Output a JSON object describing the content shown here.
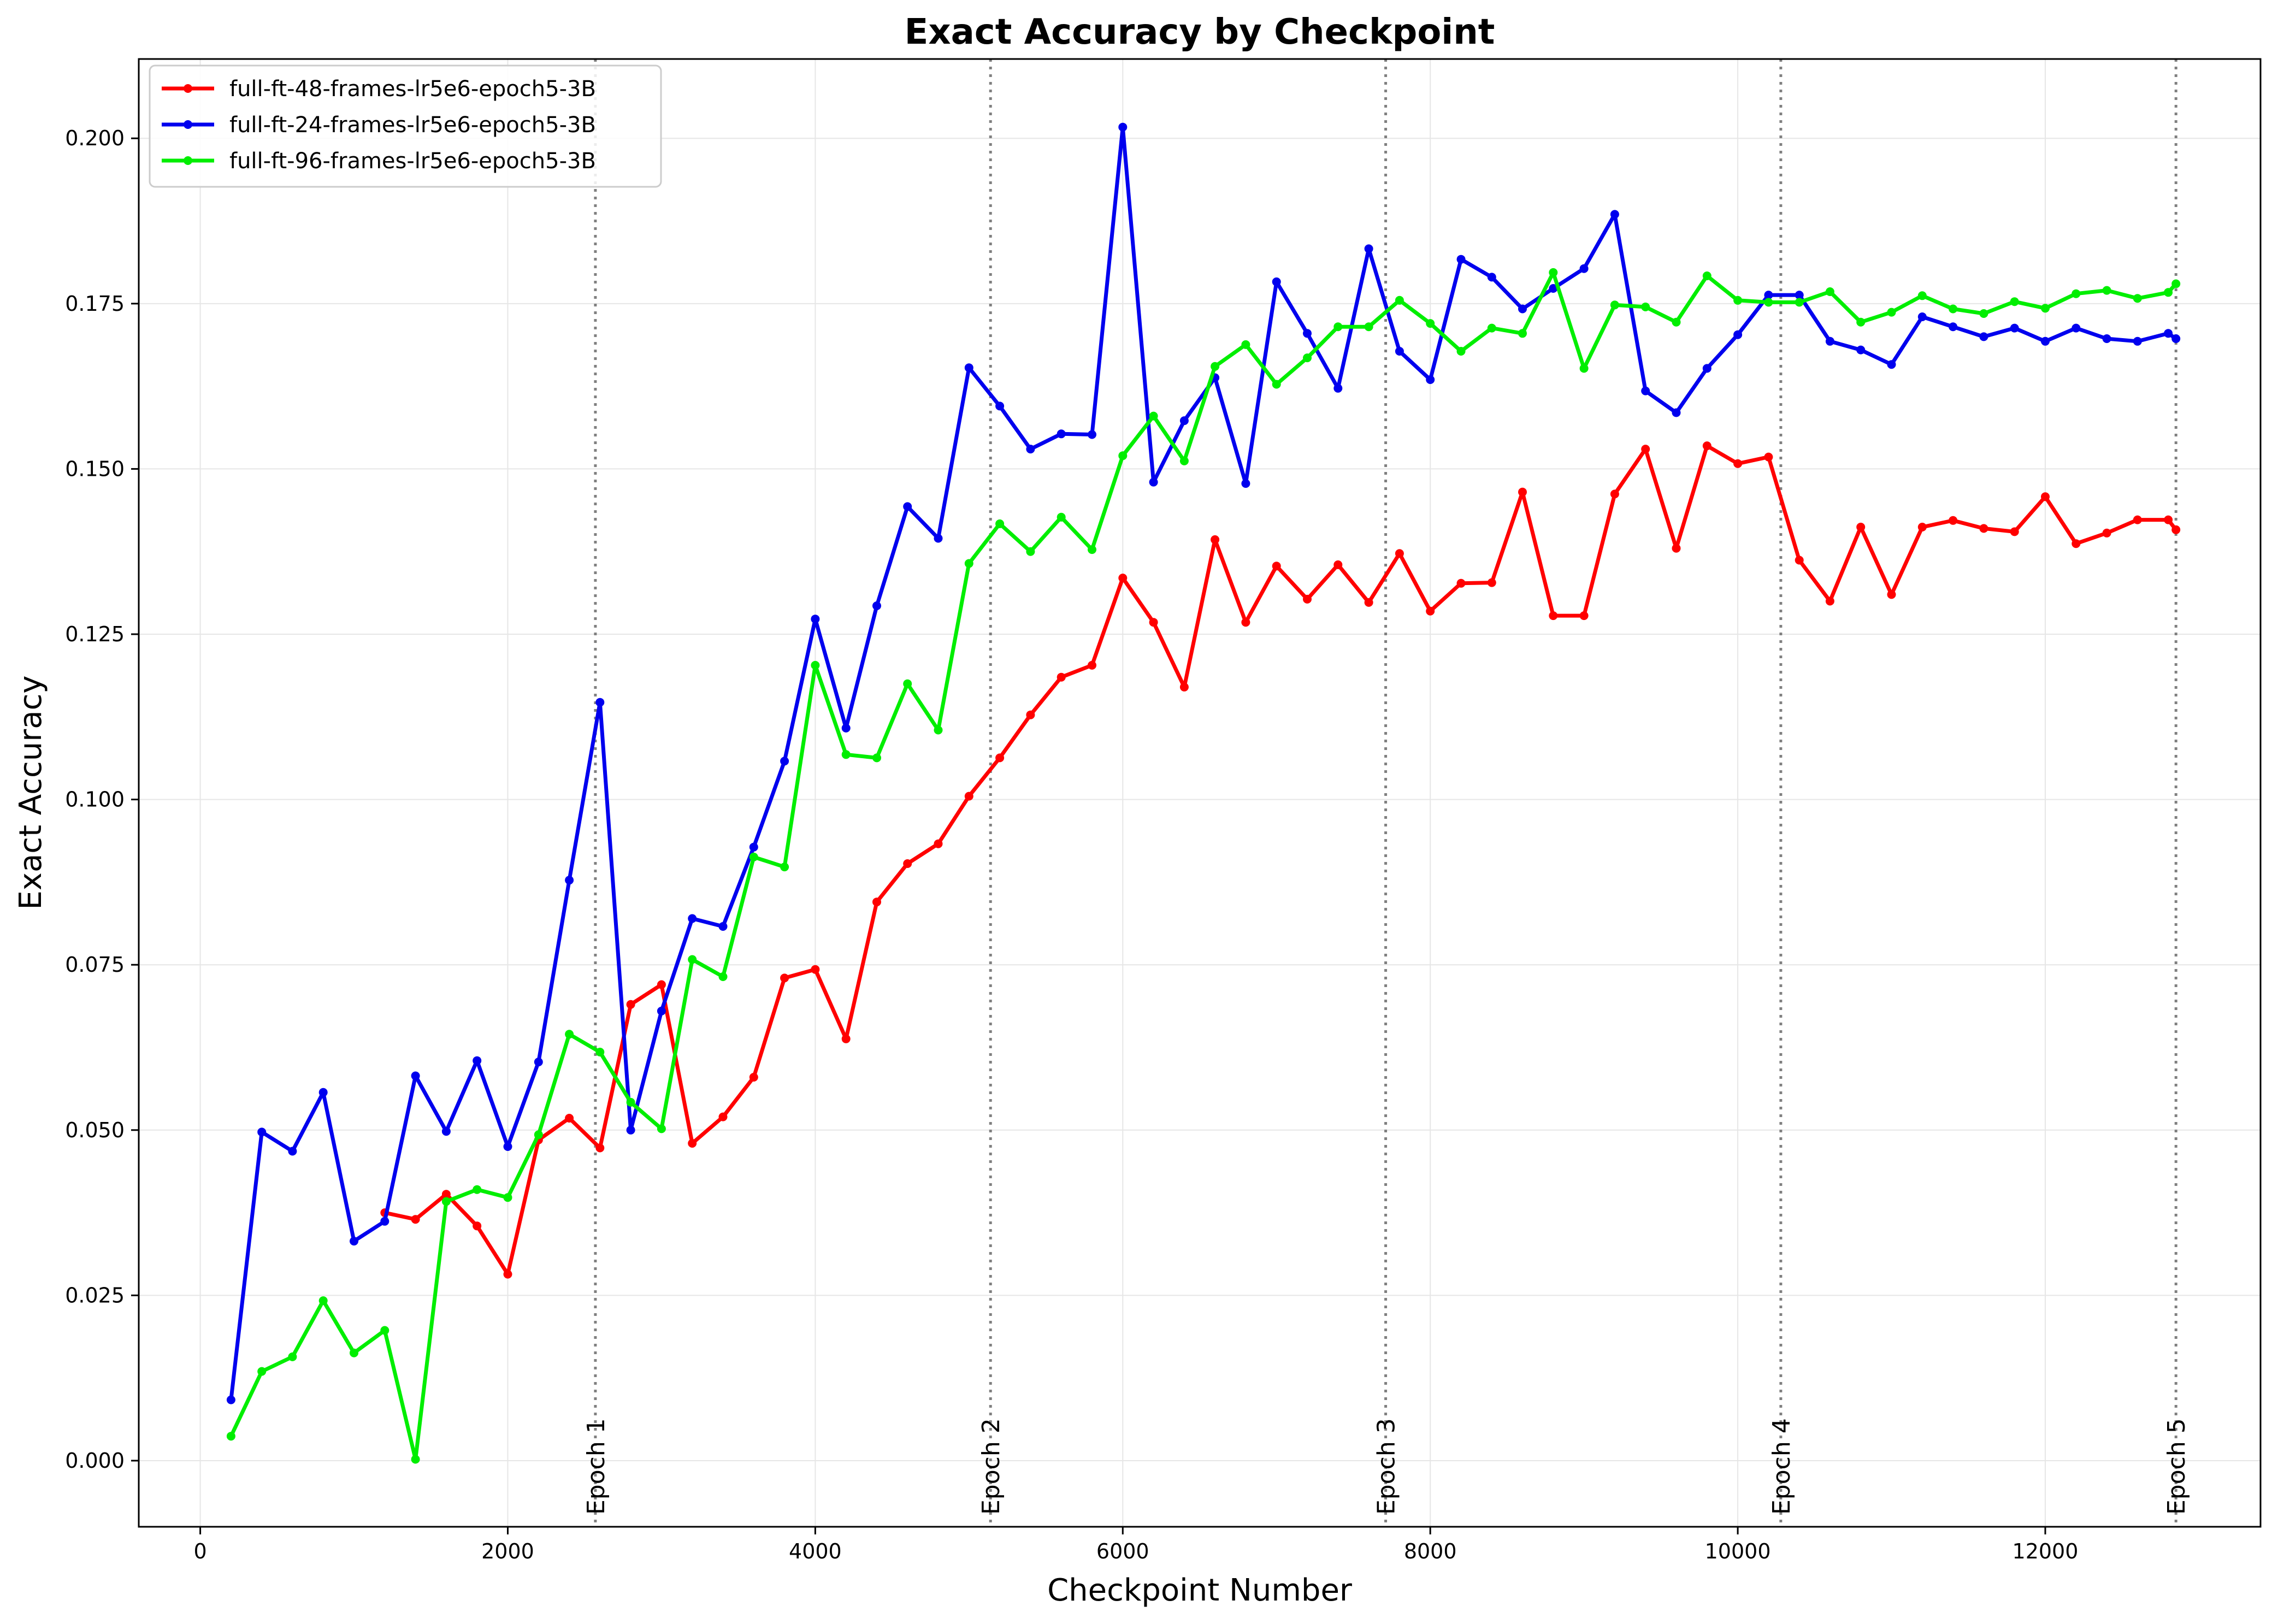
{
  "chart_data": {
    "type": "line",
    "title": "Exact Accuracy by Checkpoint",
    "xlabel": "Checkpoint Number",
    "ylabel": "Exact Accuracy",
    "xlim": [
      -400,
      13400
    ],
    "ylim": [
      -0.01,
      0.212
    ],
    "xticks": [
      0,
      2000,
      4000,
      6000,
      8000,
      10000,
      12000
    ],
    "yticks": [
      0.0,
      0.025,
      0.05,
      0.075,
      0.1,
      0.125,
      0.15,
      0.175,
      0.2
    ],
    "ytick_labels": [
      "0.000",
      "0.025",
      "0.050",
      "0.075",
      "0.100",
      "0.125",
      "0.150",
      "0.175",
      "0.200"
    ],
    "grid": true,
    "legend_position": "top-left",
    "epoch_markers": [
      {
        "label": "Epoch 1",
        "x": 2570
      },
      {
        "label": "Epoch 2",
        "x": 5140
      },
      {
        "label": "Epoch 3",
        "x": 7710
      },
      {
        "label": "Epoch 4",
        "x": 10280
      },
      {
        "label": "Epoch 5",
        "x": 12850
      }
    ],
    "series": [
      {
        "name": "full-ft-48-frames-lr5e6-epoch5-3B",
        "color": "#ff0000",
        "x": [
          1200,
          1400,
          1600,
          1800,
          2000,
          2200,
          2400,
          2600,
          2800,
          3000,
          3200,
          3400,
          3600,
          3800,
          4000,
          4200,
          4400,
          4600,
          4800,
          5000,
          5200,
          5400,
          5600,
          5800,
          6000,
          6200,
          6400,
          6600,
          6800,
          7000,
          7200,
          7400,
          7600,
          7800,
          8000,
          8200,
          8400,
          8600,
          8800,
          9000,
          9200,
          9400,
          9600,
          9800,
          10000,
          10200,
          10400,
          10600,
          10800,
          11000,
          11200,
          11400,
          11600,
          11800,
          12000,
          12200,
          12400,
          12600,
          12800,
          12850
        ],
        "y": [
          0.0375,
          0.0365,
          0.0403,
          0.0355,
          0.0282,
          0.0485,
          0.0518,
          0.0473,
          0.069,
          0.072,
          0.048,
          0.052,
          0.058,
          0.073,
          0.0743,
          0.0638,
          0.0845,
          0.0903,
          0.0933,
          0.1005,
          0.1063,
          0.1128,
          0.1185,
          0.1203,
          0.1335,
          0.1268,
          0.117,
          0.1393,
          0.1268,
          0.1353,
          0.1303,
          0.1355,
          0.1298,
          0.1372,
          0.1285,
          0.1327,
          0.1328,
          0.1465,
          0.1278,
          0.1278,
          0.1462,
          0.153,
          0.138,
          0.1535,
          0.1508,
          0.1518,
          0.1362,
          0.13,
          0.1412,
          0.131,
          0.1412,
          0.1422,
          0.141,
          0.1405,
          0.1458,
          0.1387,
          0.1403,
          0.1423,
          0.1423,
          0.1408
        ]
      },
      {
        "name": "full-ft-24-frames-lr5e6-epoch5-3B",
        "color": "#0000ee",
        "x": [
          200,
          400,
          600,
          800,
          1000,
          1200,
          1400,
          1600,
          1800,
          2000,
          2200,
          2400,
          2600,
          2800,
          3000,
          3200,
          3400,
          3600,
          3800,
          4000,
          4200,
          4400,
          4600,
          4800,
          5000,
          5200,
          5400,
          5600,
          5800,
          6000,
          6200,
          6400,
          6600,
          6800,
          7000,
          7200,
          7400,
          7600,
          7800,
          8000,
          8200,
          8400,
          8600,
          8800,
          9000,
          9200,
          9400,
          9600,
          9800,
          10000,
          10200,
          10400,
          10600,
          10800,
          11000,
          11200,
          11400,
          11600,
          11800,
          12000,
          12200,
          12400,
          12600,
          12800,
          12850
        ],
        "y": [
          0.0092,
          0.0497,
          0.0468,
          0.0557,
          0.0332,
          0.0362,
          0.0582,
          0.0498,
          0.0605,
          0.0475,
          0.0603,
          0.0878,
          0.1147,
          0.05,
          0.068,
          0.082,
          0.0808,
          0.0928,
          0.1058,
          0.1273,
          0.1108,
          0.1293,
          0.1443,
          0.1395,
          0.1653,
          0.1595,
          0.153,
          0.1553,
          0.1552,
          0.2017,
          0.148,
          0.1573,
          0.1638,
          0.1478,
          0.1783,
          0.1705,
          0.1622,
          0.1833,
          0.1678,
          0.1635,
          0.1817,
          0.179,
          0.1742,
          0.1773,
          0.1803,
          0.1885,
          0.1618,
          0.1585,
          0.1652,
          0.1703,
          0.1763,
          0.1763,
          0.1693,
          0.168,
          0.1658,
          0.173,
          0.1715,
          0.17,
          0.1713,
          0.1693,
          0.1713,
          0.1697,
          0.1693,
          0.1705,
          0.1697
        ]
      },
      {
        "name": "full-ft-96-frames-lr5e6-epoch5-3B",
        "color": "#00ee00",
        "x": [
          200,
          400,
          600,
          800,
          1000,
          1200,
          1400,
          1600,
          1800,
          2000,
          2200,
          2400,
          2600,
          2800,
          3000,
          3200,
          3400,
          3600,
          3800,
          4000,
          4200,
          4400,
          4600,
          4800,
          5000,
          5200,
          5400,
          5600,
          5800,
          6000,
          6200,
          6400,
          6600,
          6800,
          7000,
          7200,
          7400,
          7600,
          7800,
          8000,
          8200,
          8400,
          8600,
          8800,
          9000,
          9200,
          9400,
          9600,
          9800,
          10000,
          10200,
          10400,
          10600,
          10800,
          11000,
          11200,
          11400,
          11600,
          11800,
          12000,
          12200,
          12400,
          12600,
          12800,
          12850
        ],
        "y": [
          0.0037,
          0.0135,
          0.0157,
          0.0242,
          0.0163,
          0.0197,
          0.0002,
          0.0392,
          0.041,
          0.0398,
          0.0493,
          0.0645,
          0.0618,
          0.0542,
          0.0502,
          0.0758,
          0.0732,
          0.0913,
          0.0898,
          0.1203,
          0.1068,
          0.1063,
          0.1175,
          0.1105,
          0.1357,
          0.1417,
          0.1375,
          0.1427,
          0.1378,
          0.152,
          0.158,
          0.1512,
          0.1655,
          0.1688,
          0.1628,
          0.1668,
          0.1715,
          0.1715,
          0.1755,
          0.172,
          0.1678,
          0.1713,
          0.1705,
          0.1797,
          0.1652,
          0.1748,
          0.1745,
          0.1722,
          0.1792,
          0.1755,
          0.1752,
          0.1752,
          0.1768,
          0.1722,
          0.1737,
          0.1762,
          0.1742,
          0.1735,
          0.1753,
          0.1743,
          0.1765,
          0.177,
          0.1758,
          0.1767,
          0.178
        ]
      }
    ]
  }
}
